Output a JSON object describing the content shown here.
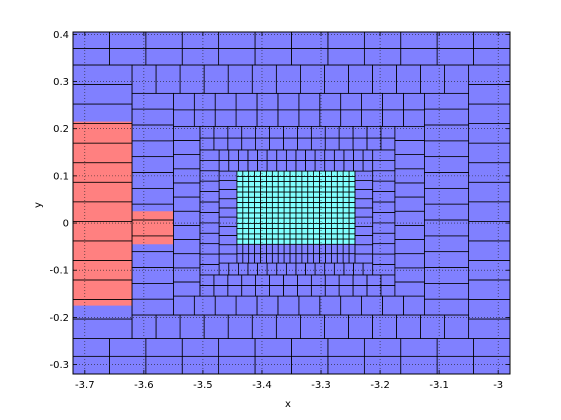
{
  "chart_data": {
    "type": "heatmap",
    "title": "",
    "xlabel": "x",
    "ylabel": "y",
    "xlim": [
      -3.72,
      -2.98
    ],
    "ylim": [
      -0.32,
      0.405
    ],
    "xticks": [
      -3.7,
      -3.6,
      -3.5,
      -3.4,
      -3.3,
      -3.2,
      -3.1,
      -3.0
    ],
    "xtick_labels": [
      "-3.7",
      "-3.6",
      "-3.5",
      "-3.4",
      "-3.3",
      "-3.2",
      "-3.1",
      "-3"
    ],
    "yticks": [
      -0.3,
      -0.2,
      -0.1,
      0.0,
      0.1,
      0.2,
      0.3,
      0.4
    ],
    "ytick_labels": [
      "-0.3",
      "-0.2",
      "-0.1",
      "0",
      "0.1",
      "0.2",
      "0.3",
      "0.4"
    ],
    "grid": true,
    "colors": {
      "blue_region": "#8080ff",
      "red_region": "#ff8080",
      "cyan_region": "#80ffff",
      "cell_edge": "#000000"
    },
    "regions": [
      {
        "color": "blue_region",
        "x": [
          -3.72,
          -2.98
        ],
        "y": [
          -0.32,
          0.405
        ]
      },
      {
        "color": "red_region",
        "x": [
          -3.72,
          -3.62
        ],
        "y": [
          -0.175,
          0.215
        ]
      },
      {
        "color": "red_region",
        "x": [
          -3.62,
          -3.55
        ],
        "y": [
          -0.045,
          0.025
        ]
      },
      {
        "color": "cyan_region",
        "x": [
          -3.4425,
          -3.2425
        ],
        "y": [
          -0.045,
          0.11
        ]
      }
    ],
    "grid_rows": [
      {
        "y": [
          0.335,
          0.405
        ],
        "x0": -3.72,
        "x1": -2.98,
        "nx": 12,
        "ny": 2
      },
      {
        "y": [
          -0.32,
          -0.245
        ],
        "x0": -3.72,
        "x1": -2.98,
        "nx": 12,
        "ny": 2
      },
      {
        "y": [
          -0.245,
          0.335
        ],
        "x0": -3.72,
        "x1": -3.62,
        "nx": 1,
        "ny": 14
      },
      {
        "y": [
          -0.245,
          0.335
        ],
        "x0": -3.05,
        "x1": -2.98,
        "nx": 1,
        "ny": 14
      },
      {
        "y": [
          0.275,
          0.335
        ],
        "x0": -3.62,
        "x1": -3.05,
        "nx": 14,
        "ny": 1
      },
      {
        "y": [
          -0.245,
          -0.195
        ],
        "x0": -3.62,
        "x1": -3.05,
        "nx": 14,
        "ny": 1
      },
      {
        "y": [
          -0.195,
          0.275
        ],
        "x0": -3.62,
        "x1": -3.55,
        "nx": 1,
        "ny": 14
      },
      {
        "y": [
          -0.195,
          0.275
        ],
        "x0": -3.125,
        "x1": -3.05,
        "nx": 1,
        "ny": 14
      },
      {
        "y": [
          0.205,
          0.275
        ],
        "x0": -3.55,
        "x1": -3.125,
        "nx": 12,
        "ny": 2
      },
      {
        "y": [
          -0.155,
          -0.195
        ],
        "x0": -3.55,
        "x1": -3.125,
        "nx": 12,
        "ny": 1
      },
      {
        "y": [
          -0.155,
          0.205
        ],
        "x0": -3.55,
        "x1": -3.505,
        "nx": 1,
        "ny": 12
      },
      {
        "y": [
          -0.155,
          0.205
        ],
        "x0": -3.175,
        "x1": -3.125,
        "nx": 1,
        "ny": 12
      },
      {
        "y": [
          0.155,
          0.205
        ],
        "x0": -3.505,
        "x1": -3.175,
        "nx": 14,
        "ny": 2
      },
      {
        "y": [
          -0.11,
          -0.155
        ],
        "x0": -3.505,
        "x1": -3.175,
        "nx": 14,
        "ny": 2
      },
      {
        "y": [
          -0.11,
          0.155
        ],
        "x0": -3.505,
        "x1": -3.4725,
        "nx": 1,
        "ny": 12
      },
      {
        "y": [
          -0.11,
          0.155
        ],
        "x0": -3.2125,
        "x1": -3.175,
        "nx": 1,
        "ny": 12
      },
      {
        "y": [
          0.11,
          0.155
        ],
        "x0": -3.4725,
        "x1": -3.2125,
        "nx": 16,
        "ny": 2
      },
      {
        "y": [
          -0.085,
          -0.11
        ],
        "x0": -3.4725,
        "x1": -3.2125,
        "nx": 16,
        "ny": 1
      },
      {
        "y": [
          -0.085,
          0.11
        ],
        "x0": -3.4725,
        "x1": -3.4425,
        "nx": 1,
        "ny": 10
      },
      {
        "y": [
          -0.085,
          0.11
        ],
        "x0": -3.2425,
        "x1": -3.2125,
        "nx": 1,
        "ny": 10
      },
      {
        "y": [
          -0.045,
          0.11
        ],
        "x0": -3.4425,
        "x1": -3.2425,
        "nx": 20,
        "ny": 14
      },
      {
        "y": [
          -0.085,
          -0.045
        ],
        "x0": -3.4425,
        "x1": -3.2425,
        "nx": 20,
        "ny": 2
      }
    ]
  }
}
